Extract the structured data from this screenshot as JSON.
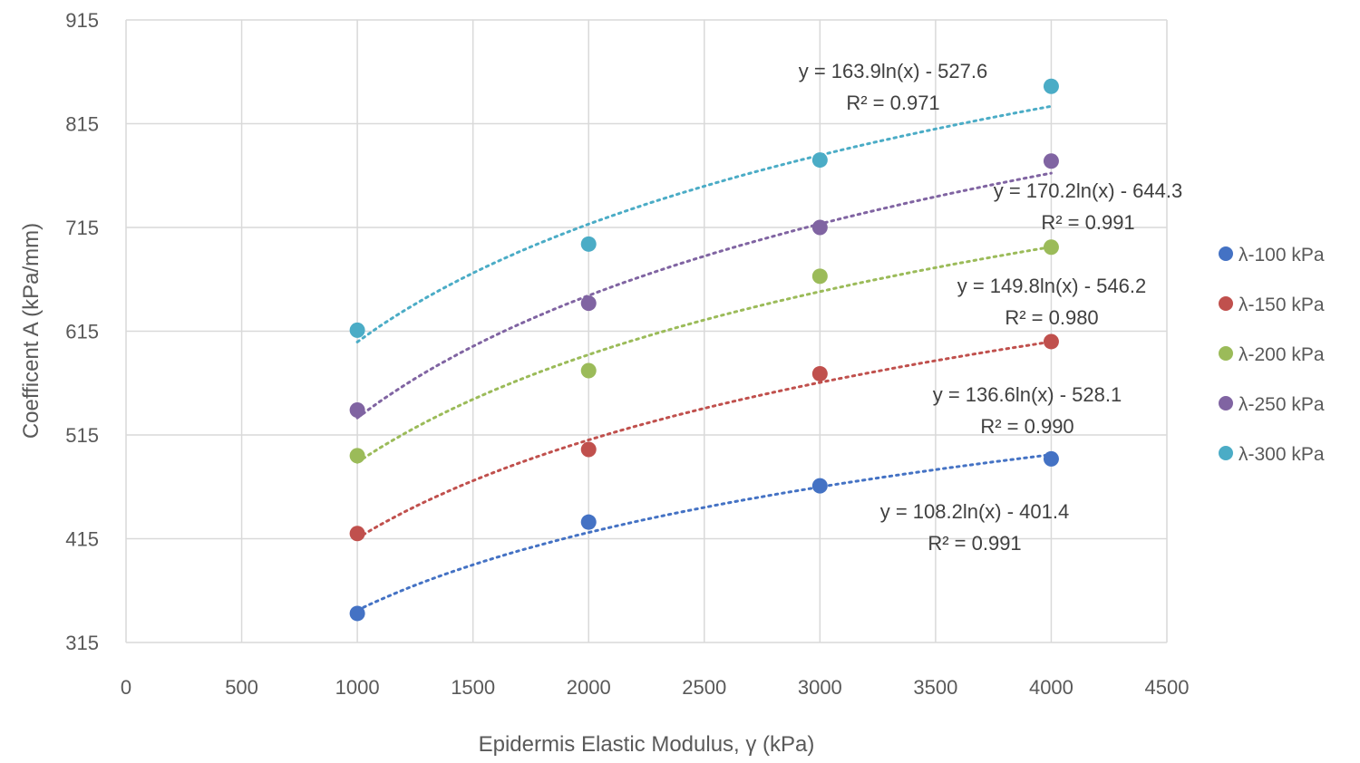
{
  "chart_data": {
    "type": "scatter",
    "title": "",
    "xlabel": "Epidermis Elastic Modulus, γ (kPa)",
    "ylabel": "Coefficent A (kPa/mm)",
    "xlim": [
      0,
      4500
    ],
    "ylim": [
      315,
      915
    ],
    "x_ticks": [
      0,
      500,
      1000,
      1500,
      2000,
      2500,
      3000,
      3500,
      4000,
      4500
    ],
    "y_ticks": [
      315,
      415,
      515,
      615,
      715,
      815,
      915
    ],
    "grid": true,
    "legend_position": "right",
    "x": [
      1000,
      2000,
      3000,
      4000
    ],
    "series": [
      {
        "name": "λ-100 kPa",
        "color": "#4472C4",
        "values": [
          343,
          431,
          466,
          492
        ],
        "trendline": {
          "type": "log",
          "a": 108.2,
          "b": -401.4,
          "equation": "y = 108.2ln(x) - 401.4",
          "r2": "R² = 0.991"
        }
      },
      {
        "name": "λ-150 kPa",
        "color": "#C0504D",
        "values": [
          420,
          501,
          574,
          605
        ],
        "trendline": {
          "type": "log",
          "a": 136.6,
          "b": -528.1,
          "equation": "y = 136.6ln(x) - 528.1",
          "r2": "R² = 0.990"
        }
      },
      {
        "name": "λ-200 kPa",
        "color": "#9BBB59",
        "values": [
          495,
          577,
          668,
          696
        ],
        "trendline": {
          "type": "log",
          "a": 149.8,
          "b": -546.2,
          "equation": "y = 149.8ln(x) - 546.2",
          "r2": "R² = 0.980"
        }
      },
      {
        "name": "λ-250 kPa",
        "color": "#8064A2",
        "values": [
          539,
          642,
          715,
          779
        ],
        "trendline": {
          "type": "log",
          "a": 170.2,
          "b": -644.3,
          "equation": "y = 170.2ln(x) - 644.3",
          "r2": "R² = 0.991"
        }
      },
      {
        "name": "λ-300 kPa",
        "color": "#4BACC6",
        "values": [
          616,
          699,
          780,
          851
        ],
        "trendline": {
          "type": "log",
          "a": 163.9,
          "b": -527.6,
          "equation": "y = 163.9ln(x) - 527.6",
          "r2": "R² = 0.971"
        }
      }
    ]
  }
}
